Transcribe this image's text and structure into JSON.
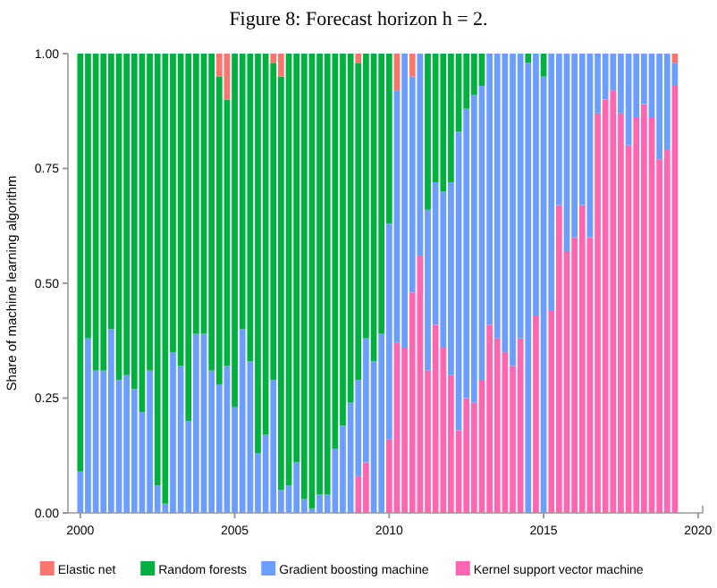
{
  "chart_data": {
    "type": "bar",
    "stacked": true,
    "title": "Figure 8: Forecast horizon h = 2.",
    "ylabel": "Share of machine learning algorithm",
    "x": [
      2000,
      2000.25,
      2000.5,
      2000.75,
      2001,
      2001.25,
      2001.5,
      2001.75,
      2002,
      2002.25,
      2002.5,
      2002.75,
      2003,
      2003.25,
      2003.5,
      2003.75,
      2004,
      2004.25,
      2004.5,
      2004.75,
      2005,
      2005.25,
      2005.5,
      2005.75,
      2006,
      2006.25,
      2006.5,
      2006.75,
      2007,
      2007.25,
      2007.5,
      2007.75,
      2008,
      2008.25,
      2008.5,
      2008.75,
      2009,
      2009.25,
      2009.5,
      2009.75,
      2010,
      2010.25,
      2010.5,
      2010.75,
      2011,
      2011.25,
      2011.5,
      2011.75,
      2012,
      2012.25,
      2012.5,
      2012.75,
      2013,
      2013.25,
      2013.5,
      2013.75,
      2014,
      2014.25,
      2014.5,
      2014.75,
      2015,
      2015.25,
      2015.5,
      2015.75,
      2016,
      2016.25,
      2016.5,
      2016.75,
      2017,
      2017.25,
      2017.5,
      2017.75,
      2018,
      2018.25,
      2018.5,
      2018.75,
      2019,
      2019.25
    ],
    "xlim": [
      1999.6,
      2020.15
    ],
    "xticks": [
      2000,
      2005,
      2010,
      2015,
      2020
    ],
    "ylim": [
      0,
      1
    ],
    "yticks": [
      {
        "value": 0,
        "label": "0.00"
      },
      {
        "value": 0.25,
        "label": "0.25"
      },
      {
        "value": 0.5,
        "label": "0.50"
      },
      {
        "value": 0.75,
        "label": "0.75"
      },
      {
        "value": 1,
        "label": "1.00"
      }
    ],
    "grid": false,
    "legend": "bottom",
    "series": [
      {
        "name": "Kernel support vector machine",
        "color": "#ff66b2",
        "values": [
          0,
          0,
          0,
          0,
          0,
          0,
          0,
          0,
          0,
          0,
          0,
          0,
          0,
          0,
          0,
          0,
          0,
          0,
          0,
          0,
          0,
          0,
          0,
          0,
          0,
          0,
          0,
          0,
          0,
          0,
          0,
          0,
          0,
          0,
          0,
          0,
          0.08,
          0.11,
          0,
          0,
          0.16,
          0.37,
          0.36,
          0.48,
          0.56,
          0.31,
          0.41,
          0.36,
          0.3,
          0.18,
          0.25,
          0.24,
          0.29,
          0.41,
          0.38,
          0.35,
          0.32,
          0.38,
          0,
          0.43,
          0,
          0.44,
          0.67,
          0.57,
          0.6,
          0.67,
          0.6,
          0.87,
          0.9,
          0.92,
          0.87,
          0.8,
          0.86,
          0.89,
          0.86,
          0.77,
          0.79,
          0.93
        ]
      },
      {
        "name": "Gradient boosting machine",
        "color": "#6b9eff",
        "values": [
          0.09,
          0.38,
          0.31,
          0.31,
          0.4,
          0.29,
          0.3,
          0.27,
          0.22,
          0.31,
          0.06,
          0.02,
          0.35,
          0.32,
          0.2,
          0.39,
          0.39,
          0.31,
          0.28,
          0.32,
          0.23,
          0.4,
          0.33,
          0.13,
          0.17,
          0.29,
          0.05,
          0.06,
          0.11,
          0.03,
          0.01,
          0.04,
          0.04,
          0.14,
          0.19,
          0.24,
          0.21,
          0.27,
          0.33,
          0.39,
          0.47,
          0.55,
          0.64,
          0.47,
          0.44,
          0.35,
          0.31,
          0.34,
          0.42,
          0.65,
          0.63,
          0.67,
          0.64,
          0.59,
          0.62,
          0.65,
          0.68,
          0.62,
          0.98,
          0.57,
          0.95,
          0.56,
          0.33,
          0.43,
          0.4,
          0.33,
          0.4,
          0.13,
          0.1,
          0.08,
          0.13,
          0.2,
          0.14,
          0.11,
          0.14,
          0.23,
          0.21,
          0.05
        ]
      },
      {
        "name": "Random forests",
        "color": "#00b140",
        "values": [
          0.91,
          0.62,
          0.69,
          0.69,
          0.6,
          0.71,
          0.7,
          0.73,
          0.78,
          0.69,
          0.94,
          0.98,
          0.65,
          0.68,
          0.8,
          0.61,
          0.61,
          0.69,
          0.67,
          0.58,
          0.77,
          0.6,
          0.67,
          0.87,
          0.83,
          0.69,
          0.9,
          0.94,
          0.89,
          0.97,
          0.99,
          0.96,
          0.96,
          0.86,
          0.81,
          0.76,
          0.69,
          0.62,
          0.67,
          0.61,
          0.37,
          0,
          0,
          0,
          0,
          0.34,
          0.28,
          0.3,
          0.28,
          0.17,
          0.12,
          0.09,
          0.07,
          0,
          0,
          0,
          0,
          0,
          0.02,
          0,
          0.05,
          0,
          0,
          0,
          0,
          0,
          0,
          0,
          0,
          0,
          0,
          0,
          0,
          0,
          0,
          0,
          0,
          0
        ]
      },
      {
        "name": "Elastic net",
        "color": "#f8766d",
        "values": [
          0,
          0,
          0,
          0,
          0,
          0,
          0,
          0,
          0,
          0,
          0,
          0,
          0,
          0,
          0,
          0,
          0,
          0,
          0.05,
          0.1,
          0,
          0,
          0,
          0,
          0,
          0.02,
          0.05,
          0,
          0,
          0,
          0,
          0,
          0,
          0,
          0,
          0,
          0.02,
          0,
          0,
          0,
          0,
          0.08,
          0,
          0.05,
          0,
          0,
          0,
          0,
          0,
          0,
          0,
          0,
          0,
          0,
          0,
          0,
          0,
          0,
          0,
          0,
          0,
          0,
          0,
          0,
          0,
          0,
          0,
          0,
          0,
          0,
          0,
          0,
          0,
          0,
          0,
          0,
          0,
          0.02
        ]
      }
    ]
  }
}
